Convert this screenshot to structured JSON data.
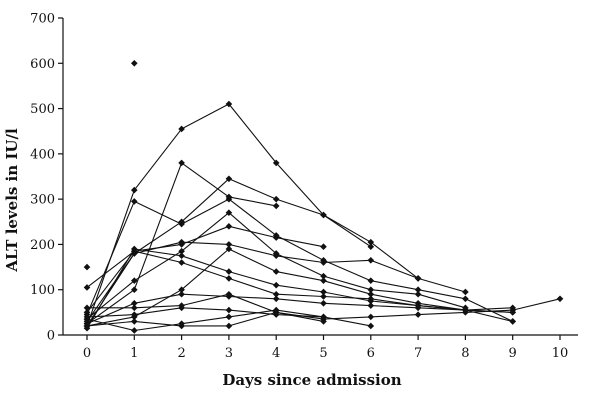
{
  "chart_data": {
    "type": "line",
    "title": "",
    "xlabel": "Days since admission",
    "ylabel": "ALT levels in IU/l",
    "xlim": [
      0,
      10
    ],
    "ylim": [
      0,
      700
    ],
    "x_ticks": [
      0,
      1,
      2,
      3,
      4,
      5,
      6,
      7,
      8,
      9,
      10
    ],
    "y_ticks": [
      0,
      100,
      200,
      300,
      400,
      500,
      600,
      700
    ],
    "line_color": "#111111",
    "marker": "diamond",
    "legend": "none",
    "grid": false,
    "series": [
      {
        "x": [
          0,
          1,
          2,
          3,
          4,
          5,
          6,
          7,
          8
        ],
        "y": [
          20,
          320,
          455,
          510,
          380,
          265,
          205,
          125,
          95
        ]
      },
      {
        "x": [
          0,
          1,
          2,
          3,
          4,
          5,
          6,
          7,
          8,
          9
        ],
        "y": [
          45,
          295,
          245,
          300,
          220,
          165,
          120,
          100,
          80,
          30
        ]
      },
      {
        "x": [
          0,
          1,
          2,
          3,
          4
        ],
        "y": [
          25,
          100,
          380,
          305,
          285
        ]
      },
      {
        "x": [
          0,
          1,
          2,
          3,
          4,
          5,
          6
        ],
        "y": [
          20,
          180,
          250,
          345,
          300,
          265,
          195
        ]
      },
      {
        "x": [
          0,
          1,
          2,
          3,
          4,
          5
        ],
        "y": [
          105,
          185,
          200,
          240,
          215,
          195
        ]
      },
      {
        "x": [
          0,
          1,
          2,
          3,
          4,
          5,
          6,
          7
        ],
        "y": [
          30,
          180,
          205,
          200,
          175,
          160,
          165,
          125
        ]
      },
      {
        "x": [
          0,
          1,
          2,
          3,
          4,
          5,
          6,
          7,
          8
        ],
        "y": [
          35,
          120,
          185,
          270,
          180,
          130,
          100,
          90,
          60
        ]
      },
      {
        "x": [
          0,
          1,
          2,
          3,
          4,
          5,
          6,
          7,
          8,
          9
        ],
        "y": [
          15,
          190,
          175,
          140,
          110,
          95,
          75,
          65,
          55,
          30
        ]
      },
      {
        "x": [
          0,
          1,
          2,
          3,
          4,
          5,
          6,
          7,
          8,
          9
        ],
        "y": [
          20,
          40,
          100,
          190,
          140,
          120,
          90,
          70,
          55,
          60
        ]
      },
      {
        "x": [
          0,
          1,
          2,
          3,
          4,
          5,
          6,
          7,
          8,
          9
        ],
        "y": [
          25,
          70,
          90,
          85,
          80,
          70,
          65,
          60,
          55,
          50
        ]
      },
      {
        "x": [
          0,
          1,
          2,
          3,
          4,
          5
        ],
        "y": [
          60,
          60,
          65,
          90,
          50,
          30
        ]
      },
      {
        "x": [
          0,
          1,
          2,
          3,
          4,
          5,
          6
        ],
        "y": [
          40,
          45,
          60,
          55,
          45,
          40,
          20
        ]
      },
      {
        "x": [
          0,
          1,
          2,
          3,
          4,
          5,
          6,
          7,
          8,
          9,
          10
        ],
        "y": [
          20,
          30,
          20,
          20,
          50,
          35,
          40,
          45,
          50,
          55,
          80
        ]
      },
      {
        "x": [
          0,
          1,
          2,
          3,
          4,
          5
        ],
        "y": [
          35,
          10,
          25,
          40,
          55,
          40
        ]
      },
      {
        "x": [
          0,
          1,
          2,
          3,
          4,
          5,
          6,
          7,
          8,
          9
        ],
        "y": [
          50,
          185,
          160,
          125,
          90,
          85,
          80,
          65,
          55,
          50
        ]
      },
      {
        "x": [
          0
        ],
        "y": [
          150
        ]
      },
      {
        "x": [
          1
        ],
        "y": [
          600
        ]
      }
    ]
  }
}
